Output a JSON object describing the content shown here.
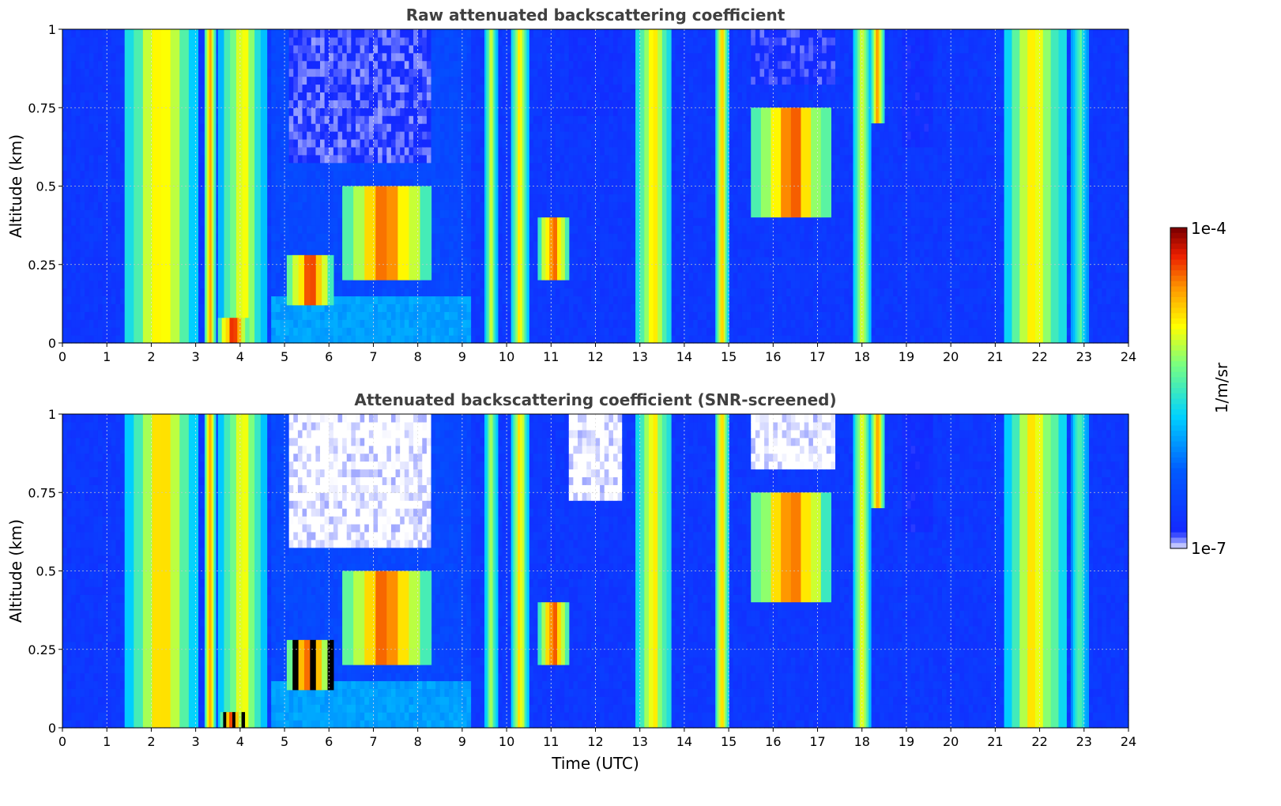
{
  "chart_data": [
    {
      "type": "heatmap",
      "title": "Raw attenuated backscattering coefficient",
      "xlabel": "",
      "ylabel": "Altitude (km)",
      "xlim": [
        0,
        24
      ],
      "ylim": [
        0,
        1
      ],
      "x_ticks": [
        "0",
        "1",
        "2",
        "3",
        "4",
        "5",
        "6",
        "7",
        "8",
        "9",
        "10",
        "11",
        "12",
        "13",
        "14",
        "15",
        "16",
        "17",
        "18",
        "19",
        "20",
        "21",
        "22",
        "23",
        "24"
      ],
      "y_ticks": [
        "0",
        "0.25",
        "0.5",
        "0.75",
        "1"
      ],
      "grid": true,
      "colormap": "jet (white to dark red)",
      "scale": "log",
      "screened": false,
      "cloud_regions": [
        {
          "t0": 1.4,
          "t1": 3.05,
          "z0": 0,
          "z1": 1,
          "level": 0.8
        },
        {
          "t0": 3.2,
          "t1": 3.45,
          "z0": 0,
          "z1": 1,
          "level": 0.9
        },
        {
          "t0": 3.5,
          "t1": 4.6,
          "z0": 0,
          "z1": 1,
          "level": 0.75
        },
        {
          "t0": 3.5,
          "t1": 4.2,
          "z0": 0,
          "z1": 0.08,
          "level": 1.0
        },
        {
          "t0": 5.05,
          "t1": 6.1,
          "z0": 0.12,
          "z1": 0.28,
          "level": 0.97
        },
        {
          "t0": 6.3,
          "t1": 8.3,
          "z0": 0.2,
          "z1": 0.5,
          "level": 0.95
        },
        {
          "t0": 9.5,
          "t1": 9.8,
          "z0": 0,
          "z1": 1,
          "level": 0.7
        },
        {
          "t0": 10.1,
          "t1": 10.5,
          "z0": 0,
          "z1": 1,
          "level": 0.8
        },
        {
          "t0": 10.7,
          "t1": 11.4,
          "z0": 0.2,
          "z1": 0.4,
          "level": 0.95
        },
        {
          "t0": 12.9,
          "t1": 13.7,
          "z0": 0,
          "z1": 1,
          "level": 0.8
        },
        {
          "t0": 14.7,
          "t1": 15.0,
          "z0": 0,
          "z1": 1,
          "level": 0.85
        },
        {
          "t0": 15.5,
          "t1": 17.3,
          "z0": 0.4,
          "z1": 0.75,
          "level": 0.95
        },
        {
          "t0": 17.8,
          "t1": 18.2,
          "z0": 0,
          "z1": 1,
          "level": 0.75
        },
        {
          "t0": 18.2,
          "t1": 18.5,
          "z0": 0.7,
          "z1": 1,
          "level": 0.9
        },
        {
          "t0": 21.2,
          "t1": 22.6,
          "z0": 0,
          "z1": 1,
          "level": 0.8
        },
        {
          "t0": 22.7,
          "t1": 23.1,
          "z0": 0,
          "z1": 1,
          "level": 0.6
        }
      ]
    },
    {
      "type": "heatmap",
      "title": "Attenuated backscattering coefficient (SNR-screened)",
      "xlabel": "Time (UTC)",
      "ylabel": "Altitude (km)",
      "xlim": [
        0,
        24
      ],
      "ylim": [
        0,
        1
      ],
      "x_ticks": [
        "0",
        "1",
        "2",
        "3",
        "4",
        "5",
        "6",
        "7",
        "8",
        "9",
        "10",
        "11",
        "12",
        "13",
        "14",
        "15",
        "16",
        "17",
        "18",
        "19",
        "20",
        "21",
        "22",
        "23",
        "24"
      ],
      "y_ticks": [
        "0",
        "0.25",
        "0.5",
        "0.75",
        "1"
      ],
      "grid": true,
      "colormap": "jet (white to dark red)",
      "scale": "log",
      "screened": true,
      "cloud_regions": [
        {
          "t0": 1.4,
          "t1": 3.05,
          "z0": 0,
          "z1": 1,
          "level": 0.8
        },
        {
          "t0": 3.2,
          "t1": 3.45,
          "z0": 0,
          "z1": 1,
          "level": 0.9
        },
        {
          "t0": 3.5,
          "t1": 4.6,
          "z0": 0,
          "z1": 1,
          "level": 0.75
        },
        {
          "t0": 3.55,
          "t1": 4.1,
          "z0": 0,
          "z1": 0.05,
          "level": 1.0
        },
        {
          "t0": 5.05,
          "t1": 6.1,
          "z0": 0.12,
          "z1": 0.28,
          "level": 0.97
        },
        {
          "t0": 6.3,
          "t1": 8.3,
          "z0": 0.2,
          "z1": 0.5,
          "level": 0.95
        },
        {
          "t0": 9.5,
          "t1": 9.8,
          "z0": 0,
          "z1": 1,
          "level": 0.7
        },
        {
          "t0": 10.1,
          "t1": 10.5,
          "z0": 0,
          "z1": 1,
          "level": 0.8
        },
        {
          "t0": 10.7,
          "t1": 11.4,
          "z0": 0.2,
          "z1": 0.4,
          "level": 0.95
        },
        {
          "t0": 12.9,
          "t1": 13.7,
          "z0": 0,
          "z1": 1,
          "level": 0.8
        },
        {
          "t0": 14.7,
          "t1": 15.0,
          "z0": 0,
          "z1": 1,
          "level": 0.85
        },
        {
          "t0": 15.5,
          "t1": 17.3,
          "z0": 0.4,
          "z1": 0.75,
          "level": 0.95
        },
        {
          "t0": 17.8,
          "t1": 18.2,
          "z0": 0,
          "z1": 1,
          "level": 0.75
        },
        {
          "t0": 18.2,
          "t1": 18.5,
          "z0": 0.7,
          "z1": 1,
          "level": 0.9
        },
        {
          "t0": 21.2,
          "t1": 22.6,
          "z0": 0,
          "z1": 1,
          "level": 0.8
        },
        {
          "t0": 22.7,
          "t1": 23.1,
          "z0": 0,
          "z1": 1,
          "level": 0.6
        }
      ]
    }
  ],
  "colorbar": {
    "label": "1/m/sr",
    "max_label": "1e-4",
    "min_label": "1e-7",
    "scale": "log",
    "colors": [
      "#ffffff",
      "#0a2bff",
      "#00c8ff",
      "#ffff00",
      "#ff7f00",
      "#8b0000"
    ]
  }
}
